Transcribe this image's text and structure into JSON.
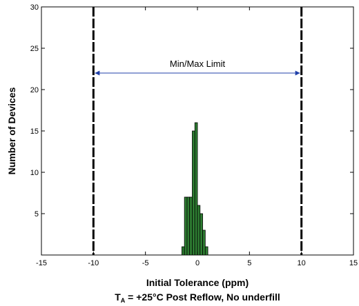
{
  "chart_data": {
    "type": "bar",
    "xlabel": "Initial Tolerance (ppm)",
    "ylabel": "Number of Devices",
    "subtitle": {
      "prefix": "T",
      "subscript": "A",
      "text": " = +25°C Post Reflow, No underfill"
    },
    "xlim": [
      -15,
      15
    ],
    "ylim": [
      0,
      30
    ],
    "xticks": [
      -15,
      -10,
      -5,
      0,
      5,
      10,
      15
    ],
    "yticks": [
      5,
      10,
      15,
      20,
      25,
      30
    ],
    "bin_width": 0.25,
    "bins": [
      {
        "x": -1.5,
        "count": 1
      },
      {
        "x": -1.25,
        "count": 7
      },
      {
        "x": -1.0,
        "count": 7
      },
      {
        "x": -0.75,
        "count": 7
      },
      {
        "x": -0.5,
        "count": 15
      },
      {
        "x": -0.25,
        "count": 16
      },
      {
        "x": 0.0,
        "count": 6
      },
      {
        "x": 0.25,
        "count": 5
      },
      {
        "x": 0.5,
        "count": 3
      },
      {
        "x": 0.75,
        "count": 1
      }
    ],
    "bar_color": "#2e7d32",
    "limit_lines": [
      -10,
      10
    ],
    "limit_annotation": {
      "label": "Min/Max Limit",
      "y": 22,
      "from": -10,
      "to": 10,
      "color": "#1f3fa8"
    },
    "grid": false
  }
}
